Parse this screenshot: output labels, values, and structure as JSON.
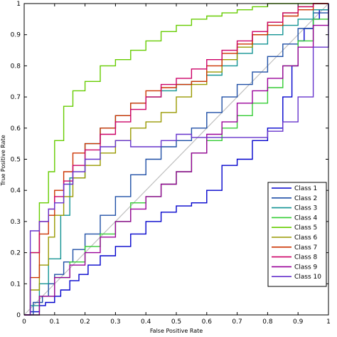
{
  "chart_data": {
    "type": "line",
    "title": "",
    "xlabel": "False Positive Rate",
    "ylabel": "True Positive Rate",
    "xlim": [
      0,
      1
    ],
    "ylim": [
      0,
      1
    ],
    "x_ticks": [
      "0",
      "0.1",
      "0.2",
      "0.3",
      "0.4",
      "0.5",
      "0.6",
      "0.7",
      "0.8",
      "0.9",
      "1"
    ],
    "y_ticks": [
      "0",
      "0.1",
      "0.2",
      "0.3",
      "0.4",
      "0.5",
      "0.6",
      "0.7",
      "0.8",
      "0.9",
      "1"
    ],
    "grid": false,
    "legend_position": "lower-right",
    "diagonal": {
      "x": [
        0,
        1
      ],
      "y": [
        0,
        1
      ],
      "color": "#bfbfbf"
    },
    "series": [
      {
        "name": "Class 1",
        "color": "#0000cc",
        "x": [
          0,
          0.02,
          0.05,
          0.07,
          0.1,
          0.12,
          0.15,
          0.18,
          0.21,
          0.25,
          0.3,
          0.35,
          0.4,
          0.45,
          0.5,
          0.55,
          0.6,
          0.65,
          0.7,
          0.75,
          0.8,
          0.85,
          0.88,
          0.9,
          0.92,
          0.95,
          0.97,
          1.0
        ],
        "y": [
          0,
          0.01,
          0.03,
          0.04,
          0.06,
          0.08,
          0.11,
          0.13,
          0.16,
          0.19,
          0.22,
          0.26,
          0.3,
          0.33,
          0.35,
          0.36,
          0.4,
          0.48,
          0.5,
          0.56,
          0.6,
          0.7,
          0.8,
          0.88,
          0.92,
          0.95,
          0.98,
          1.0
        ]
      },
      {
        "name": "Class 2",
        "color": "#1f4fa6",
        "x": [
          0,
          0.03,
          0.06,
          0.08,
          0.1,
          0.13,
          0.16,
          0.2,
          0.25,
          0.3,
          0.35,
          0.4,
          0.45,
          0.5,
          0.55,
          0.6,
          0.65,
          0.7,
          0.75,
          0.8,
          0.85,
          0.9,
          0.95,
          1.0
        ],
        "y": [
          0,
          0.04,
          0.06,
          0.1,
          0.13,
          0.17,
          0.21,
          0.26,
          0.32,
          0.38,
          0.45,
          0.5,
          0.54,
          0.56,
          0.6,
          0.65,
          0.7,
          0.74,
          0.78,
          0.83,
          0.87,
          0.92,
          0.97,
          1.0
        ]
      },
      {
        "name": "Class 3",
        "color": "#139494",
        "x": [
          0,
          0.02,
          0.05,
          0.08,
          0.12,
          0.15,
          0.2,
          0.25,
          0.3,
          0.35,
          0.4,
          0.45,
          0.5,
          0.55,
          0.6,
          0.65,
          0.7,
          0.75,
          0.8,
          0.85,
          0.9,
          0.95,
          1.0
        ],
        "y": [
          0,
          0.03,
          0.1,
          0.18,
          0.32,
          0.44,
          0.55,
          0.6,
          0.64,
          0.68,
          0.7,
          0.72,
          0.74,
          0.75,
          0.77,
          0.8,
          0.84,
          0.87,
          0.9,
          0.93,
          0.95,
          0.98,
          1.0
        ]
      },
      {
        "name": "Class 4",
        "color": "#33cc33",
        "x": [
          0,
          0.05,
          0.1,
          0.15,
          0.2,
          0.25,
          0.3,
          0.35,
          0.4,
          0.45,
          0.5,
          0.55,
          0.6,
          0.65,
          0.7,
          0.75,
          0.8,
          0.85,
          0.9,
          0.95,
          1.0
        ],
        "y": [
          0,
          0.06,
          0.12,
          0.17,
          0.22,
          0.26,
          0.3,
          0.36,
          0.38,
          0.42,
          0.46,
          0.52,
          0.56,
          0.6,
          0.64,
          0.68,
          0.73,
          0.8,
          0.88,
          0.95,
          1.0
        ]
      },
      {
        "name": "Class 5",
        "color": "#66cc00",
        "x": [
          0,
          0.02,
          0.05,
          0.08,
          0.1,
          0.13,
          0.16,
          0.2,
          0.25,
          0.3,
          0.35,
          0.4,
          0.45,
          0.5,
          0.55,
          0.6,
          0.65,
          0.7,
          0.75,
          0.8,
          0.85,
          0.9,
          0.95,
          1.0
        ],
        "y": [
          0,
          0.2,
          0.36,
          0.46,
          0.56,
          0.67,
          0.72,
          0.75,
          0.8,
          0.82,
          0.85,
          0.88,
          0.91,
          0.93,
          0.95,
          0.96,
          0.97,
          0.98,
          0.99,
          1.0,
          1.0,
          1.0,
          1.0,
          1.0
        ]
      },
      {
        "name": "Class 6",
        "color": "#999900",
        "x": [
          0,
          0.02,
          0.05,
          0.08,
          0.1,
          0.13,
          0.16,
          0.2,
          0.25,
          0.3,
          0.35,
          0.4,
          0.45,
          0.5,
          0.55,
          0.6,
          0.65,
          0.7,
          0.75,
          0.8,
          0.85,
          0.9,
          0.95,
          1.0
        ],
        "y": [
          0,
          0.08,
          0.16,
          0.25,
          0.32,
          0.38,
          0.44,
          0.48,
          0.52,
          0.56,
          0.6,
          0.62,
          0.65,
          0.7,
          0.74,
          0.78,
          0.82,
          0.86,
          0.9,
          0.94,
          0.97,
          0.99,
          1.0,
          1.0
        ]
      },
      {
        "name": "Class 7",
        "color": "#cc3300",
        "x": [
          0,
          0.02,
          0.05,
          0.08,
          0.1,
          0.13,
          0.16,
          0.2,
          0.25,
          0.3,
          0.35,
          0.4,
          0.45,
          0.5,
          0.55,
          0.6,
          0.65,
          0.7,
          0.75,
          0.8,
          0.85,
          0.9,
          0.95,
          1.0
        ],
        "y": [
          0,
          0.12,
          0.26,
          0.32,
          0.4,
          0.46,
          0.52,
          0.55,
          0.6,
          0.64,
          0.68,
          0.72,
          0.73,
          0.74,
          0.75,
          0.8,
          0.84,
          0.87,
          0.9,
          0.93,
          0.96,
          0.98,
          1.0,
          1.0
        ]
      },
      {
        "name": "Class 8",
        "color": "#cc0066",
        "x": [
          0,
          0.02,
          0.05,
          0.08,
          0.1,
          0.13,
          0.16,
          0.2,
          0.25,
          0.3,
          0.35,
          0.4,
          0.45,
          0.5,
          0.55,
          0.6,
          0.65,
          0.7,
          0.75,
          0.8,
          0.85,
          0.9,
          0.95,
          1.0
        ],
        "y": [
          0,
          0.2,
          0.3,
          0.34,
          0.38,
          0.43,
          0.48,
          0.53,
          0.58,
          0.62,
          0.66,
          0.7,
          0.74,
          0.76,
          0.79,
          0.82,
          0.85,
          0.88,
          0.91,
          0.94,
          0.97,
          0.99,
          1.0,
          1.0
        ]
      },
      {
        "name": "Class 9",
        "color": "#990099",
        "x": [
          0,
          0.05,
          0.1,
          0.15,
          0.2,
          0.25,
          0.3,
          0.35,
          0.4,
          0.45,
          0.5,
          0.55,
          0.6,
          0.65,
          0.7,
          0.75,
          0.8,
          0.85,
          0.9,
          0.95,
          1.0
        ],
        "y": [
          0,
          0.06,
          0.12,
          0.16,
          0.2,
          0.25,
          0.3,
          0.34,
          0.38,
          0.42,
          0.46,
          0.52,
          0.58,
          0.62,
          0.68,
          0.72,
          0.76,
          0.8,
          0.86,
          0.93,
          1.0
        ]
      },
      {
        "name": "Class 10",
        "color": "#6633cc",
        "x": [
          0,
          0.02,
          0.05,
          0.08,
          0.1,
          0.13,
          0.16,
          0.2,
          0.25,
          0.3,
          0.35,
          0.4,
          0.45,
          0.5,
          0.55,
          0.6,
          0.65,
          0.7,
          0.75,
          0.8,
          0.85,
          0.9,
          0.95,
          1.0
        ],
        "y": [
          0,
          0.27,
          0.3,
          0.34,
          0.36,
          0.42,
          0.46,
          0.5,
          0.54,
          0.56,
          0.54,
          0.54,
          0.56,
          0.58,
          0.57,
          0.57,
          0.57,
          0.57,
          0.57,
          0.59,
          0.62,
          0.7,
          0.86,
          1.0
        ]
      }
    ]
  }
}
